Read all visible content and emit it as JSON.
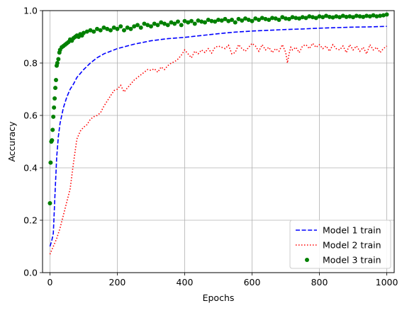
{
  "chart_data": {
    "type": "line",
    "title": "",
    "xlabel": "Epochs",
    "ylabel": "Accuracy",
    "xlim": [
      -22,
      1022
    ],
    "ylim": [
      0.0,
      1.0
    ],
    "x_ticks": [
      0,
      200,
      400,
      600,
      800,
      1000
    ],
    "y_ticks": [
      0.0,
      0.2,
      0.4,
      0.6,
      0.8,
      1.0
    ],
    "x_tick_labels": [
      "0",
      "200",
      "400",
      "600",
      "800",
      "1000"
    ],
    "y_tick_labels": [
      "0.0",
      "0.2",
      "0.4",
      "0.6",
      "0.8",
      "1.0"
    ],
    "grid": true,
    "legend_position": "lower-right",
    "series": [
      {
        "name": "Model 1 train",
        "style": "dashed",
        "color": "#0000ff",
        "x": [
          0,
          5,
          10,
          15,
          20,
          25,
          30,
          40,
          50,
          60,
          70,
          80,
          90,
          100,
          120,
          140,
          160,
          180,
          200,
          250,
          300,
          350,
          400,
          450,
          500,
          550,
          600,
          650,
          700,
          750,
          800,
          850,
          900,
          950,
          1000
        ],
        "y": [
          0.1,
          0.12,
          0.15,
          0.3,
          0.44,
          0.52,
          0.57,
          0.63,
          0.67,
          0.7,
          0.72,
          0.745,
          0.76,
          0.775,
          0.8,
          0.82,
          0.835,
          0.845,
          0.855,
          0.872,
          0.885,
          0.893,
          0.898,
          0.905,
          0.912,
          0.918,
          0.922,
          0.925,
          0.928,
          0.93,
          0.933,
          0.935,
          0.937,
          0.938,
          0.94
        ]
      },
      {
        "name": "Model 2 train",
        "style": "dotted",
        "color": "#ff0000",
        "x": [
          0,
          10,
          20,
          30,
          40,
          50,
          60,
          70,
          80,
          90,
          100,
          110,
          120,
          130,
          140,
          150,
          160,
          170,
          180,
          190,
          200,
          210,
          220,
          230,
          240,
          250,
          260,
          270,
          280,
          290,
          300,
          310,
          320,
          330,
          340,
          350,
          360,
          370,
          380,
          390,
          400,
          410,
          420,
          430,
          440,
          450,
          460,
          470,
          480,
          490,
          500,
          510,
          520,
          530,
          540,
          550,
          560,
          570,
          580,
          590,
          600,
          610,
          620,
          630,
          640,
          650,
          660,
          670,
          680,
          690,
          700,
          705,
          710,
          715,
          720,
          730,
          740,
          750,
          760,
          770,
          780,
          790,
          800,
          810,
          820,
          830,
          840,
          850,
          860,
          870,
          880,
          890,
          900,
          910,
          920,
          930,
          940,
          950,
          960,
          970,
          980,
          990,
          1000
        ],
        "y": [
          0.07,
          0.1,
          0.13,
          0.17,
          0.22,
          0.27,
          0.32,
          0.42,
          0.51,
          0.54,
          0.555,
          0.565,
          0.585,
          0.595,
          0.6,
          0.61,
          0.635,
          0.655,
          0.675,
          0.695,
          0.7,
          0.715,
          0.69,
          0.705,
          0.72,
          0.735,
          0.745,
          0.755,
          0.765,
          0.775,
          0.772,
          0.778,
          0.765,
          0.785,
          0.775,
          0.79,
          0.8,
          0.805,
          0.815,
          0.83,
          0.85,
          0.835,
          0.82,
          0.845,
          0.835,
          0.85,
          0.84,
          0.855,
          0.838,
          0.86,
          0.865,
          0.86,
          0.855,
          0.868,
          0.835,
          0.84,
          0.87,
          0.855,
          0.845,
          0.86,
          0.875,
          0.865,
          0.845,
          0.87,
          0.85,
          0.86,
          0.84,
          0.855,
          0.845,
          0.87,
          0.84,
          0.8,
          0.835,
          0.86,
          0.85,
          0.86,
          0.84,
          0.865,
          0.87,
          0.855,
          0.875,
          0.86,
          0.87,
          0.855,
          0.865,
          0.845,
          0.87,
          0.855,
          0.85,
          0.865,
          0.84,
          0.87,
          0.85,
          0.865,
          0.845,
          0.86,
          0.835,
          0.87,
          0.85,
          0.86,
          0.84,
          0.855,
          0.865
        ]
      },
      {
        "name": "Model 3 train",
        "style": "points",
        "color": "#008000",
        "x": [
          0,
          2,
          4,
          6,
          8,
          10,
          12,
          14,
          16,
          18,
          20,
          22,
          25,
          28,
          30,
          35,
          40,
          45,
          50,
          55,
          60,
          65,
          70,
          75,
          80,
          85,
          90,
          95,
          100,
          110,
          120,
          130,
          140,
          150,
          160,
          170,
          180,
          190,
          200,
          210,
          220,
          230,
          240,
          250,
          260,
          270,
          280,
          290,
          300,
          310,
          320,
          330,
          340,
          350,
          360,
          370,
          380,
          390,
          400,
          410,
          420,
          430,
          440,
          450,
          460,
          470,
          480,
          490,
          500,
          510,
          520,
          530,
          540,
          550,
          560,
          570,
          580,
          590,
          600,
          610,
          620,
          630,
          640,
          650,
          660,
          670,
          680,
          690,
          700,
          710,
          720,
          730,
          740,
          750,
          760,
          770,
          780,
          790,
          800,
          810,
          820,
          830,
          840,
          850,
          860,
          870,
          880,
          890,
          900,
          910,
          920,
          930,
          940,
          950,
          960,
          970,
          980,
          990,
          1000
        ],
        "y": [
          0.265,
          0.42,
          0.5,
          0.505,
          0.545,
          0.595,
          0.63,
          0.665,
          0.705,
          0.735,
          0.79,
          0.8,
          0.815,
          0.84,
          0.85,
          0.86,
          0.865,
          0.87,
          0.875,
          0.88,
          0.89,
          0.885,
          0.895,
          0.9,
          0.905,
          0.9,
          0.91,
          0.905,
          0.915,
          0.92,
          0.925,
          0.92,
          0.93,
          0.925,
          0.935,
          0.93,
          0.925,
          0.935,
          0.93,
          0.94,
          0.925,
          0.935,
          0.93,
          0.94,
          0.945,
          0.935,
          0.95,
          0.945,
          0.94,
          0.95,
          0.945,
          0.955,
          0.95,
          0.945,
          0.955,
          0.95,
          0.958,
          0.945,
          0.96,
          0.955,
          0.96,
          0.95,
          0.962,
          0.958,
          0.955,
          0.965,
          0.96,
          0.958,
          0.965,
          0.962,
          0.968,
          0.96,
          0.965,
          0.955,
          0.968,
          0.962,
          0.97,
          0.965,
          0.96,
          0.97,
          0.965,
          0.972,
          0.968,
          0.965,
          0.972,
          0.97,
          0.965,
          0.975,
          0.97,
          0.968,
          0.975,
          0.972,
          0.97,
          0.975,
          0.972,
          0.978,
          0.975,
          0.972,
          0.978,
          0.975,
          0.98,
          0.976,
          0.974,
          0.978,
          0.975,
          0.98,
          0.976,
          0.978,
          0.975,
          0.98,
          0.978,
          0.976,
          0.98,
          0.978,
          0.982,
          0.978,
          0.98,
          0.982,
          0.985
        ]
      }
    ]
  }
}
